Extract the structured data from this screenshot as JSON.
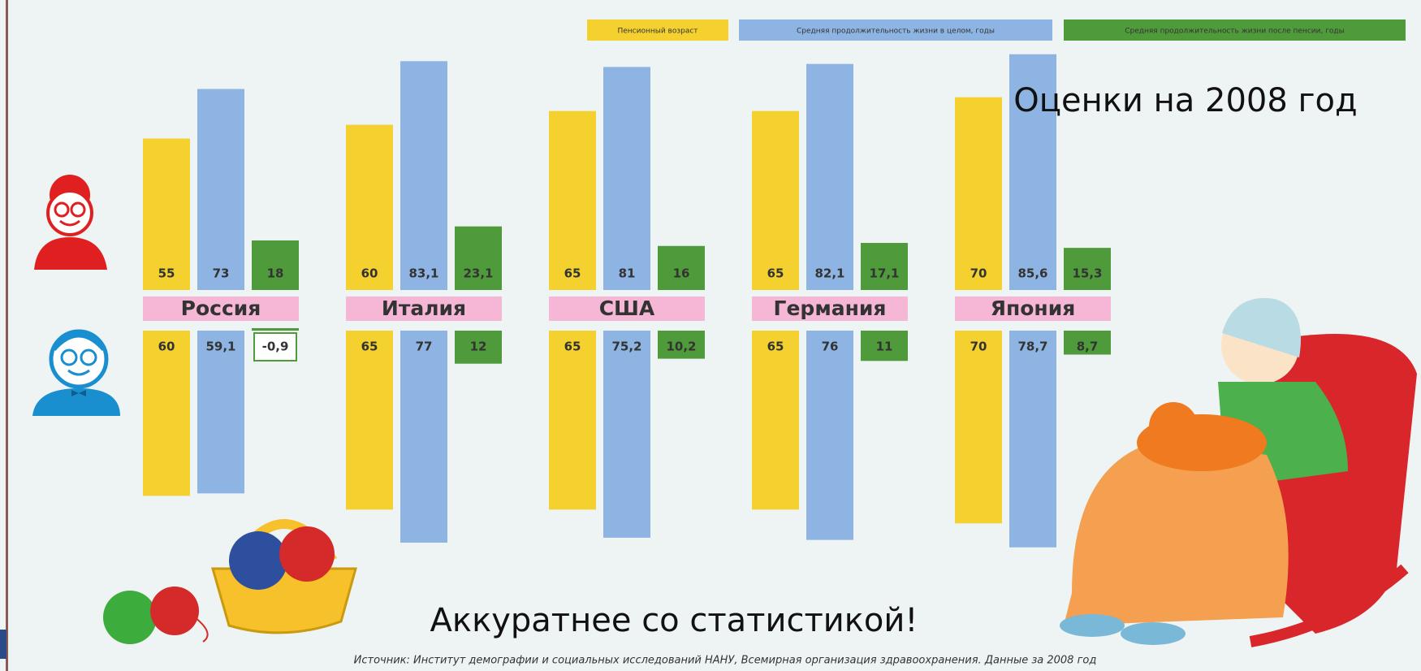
{
  "chart_data": {
    "type": "bar",
    "title": "Аккуратнее со статистикой!",
    "subtitle": "Оценки на 2008 год",
    "source": "Источник: Институт демографии и социальных исследований НАНУ, Всемирная организация здравоохранения. Данные за 2008 год",
    "categories": [
      "Россия",
      "Италия",
      "США",
      "Германия",
      "Япония"
    ],
    "series": [
      {
        "name": "Пенсионный возраст",
        "color": "#f4d12e"
      },
      {
        "name": "Средняя продолжительность жизни в целом, годы",
        "color": "#8db4e2"
      },
      {
        "name": "Средняя продолжительность жизни после пенсии, годы",
        "color": "#4f9a3a"
      }
    ],
    "panels": [
      {
        "direction": "up",
        "values": [
          [
            55,
            60,
            65,
            65,
            70
          ],
          [
            73,
            83.1,
            81,
            82.1,
            85.6
          ],
          [
            18,
            23.1,
            16,
            17.1,
            15.3
          ]
        ],
        "value_labels": [
          [
            "55",
            "60",
            "65",
            "65",
            "70"
          ],
          [
            "73",
            "83,1",
            "81",
            "82,1",
            "85,6"
          ],
          [
            "18",
            "23,1",
            "16",
            "17,1",
            "15,3"
          ]
        ]
      },
      {
        "direction": "down",
        "values": [
          [
            60,
            65,
            65,
            65,
            70
          ],
          [
            59.1,
            77,
            75.2,
            76,
            78.7
          ],
          [
            -0.9,
            12,
            10.2,
            11,
            8.7
          ]
        ],
        "value_labels": [
          [
            "60",
            "65",
            "65",
            "65",
            "70"
          ],
          [
            "59,1",
            "77",
            "75,2",
            "76",
            "78,7"
          ],
          [
            "-0,9",
            "12",
            "10,2",
            "11",
            "8,7"
          ]
        ]
      }
    ]
  }
}
